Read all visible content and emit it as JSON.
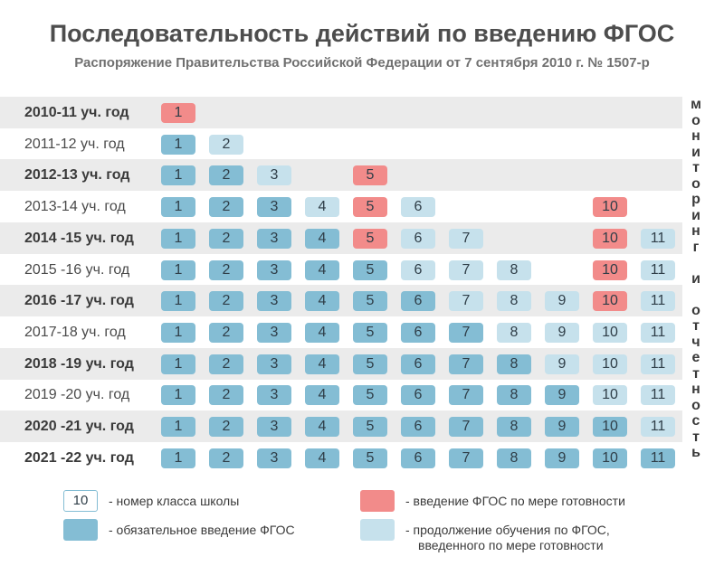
{
  "title": "Последовательность действий по введению ФГОС",
  "subtitle": "Распоряжение Правительства Российской Федерации от 7 сентября 2010 г. № 1507-р",
  "side_text": [
    "м",
    "о",
    "н",
    "и",
    "т",
    "о",
    "р",
    "и",
    "н",
    "г",
    "",
    "и",
    "",
    "о",
    "т",
    "ч",
    "е",
    "т",
    "н",
    "о",
    "с",
    "т",
    "ь"
  ],
  "colors": {
    "mandatory": "#84bdd4",
    "continued": "#c6e1ec",
    "introduction": "#f28b8a"
  },
  "rows": [
    {
      "label": "2010-11 уч. год",
      "bold": true,
      "cells": [
        {
          "n": "1",
          "s": "i"
        }
      ]
    },
    {
      "label": "2011-12 уч. год",
      "bold": false,
      "cells": [
        {
          "n": "1",
          "s": "m"
        },
        {
          "n": "2",
          "s": "c"
        }
      ]
    },
    {
      "label": "2012-13 уч. год",
      "bold": true,
      "cells": [
        {
          "n": "1",
          "s": "m"
        },
        {
          "n": "2",
          "s": "m"
        },
        {
          "n": "3",
          "s": "c"
        },
        {
          "n": "5",
          "s": "i"
        }
      ]
    },
    {
      "label": "2013-14 уч. год",
      "bold": false,
      "cells": [
        {
          "n": "1",
          "s": "m"
        },
        {
          "n": "2",
          "s": "m"
        },
        {
          "n": "3",
          "s": "m"
        },
        {
          "n": "4",
          "s": "c"
        },
        {
          "n": "5",
          "s": "i"
        },
        {
          "n": "6",
          "s": "c"
        },
        {
          "n": "10",
          "s": "i"
        }
      ]
    },
    {
      "label": "2014 -15 уч. год",
      "bold": true,
      "cells": [
        {
          "n": "1",
          "s": "m"
        },
        {
          "n": "2",
          "s": "m"
        },
        {
          "n": "3",
          "s": "m"
        },
        {
          "n": "4",
          "s": "m"
        },
        {
          "n": "5",
          "s": "i"
        },
        {
          "n": "6",
          "s": "c"
        },
        {
          "n": "7",
          "s": "c"
        },
        {
          "n": "10",
          "s": "i"
        },
        {
          "n": "11",
          "s": "c"
        }
      ]
    },
    {
      "label": "2015 -16 уч. год",
      "bold": false,
      "cells": [
        {
          "n": "1",
          "s": "m"
        },
        {
          "n": "2",
          "s": "m"
        },
        {
          "n": "3",
          "s": "m"
        },
        {
          "n": "4",
          "s": "m"
        },
        {
          "n": "5",
          "s": "m"
        },
        {
          "n": "6",
          "s": "c"
        },
        {
          "n": "7",
          "s": "c"
        },
        {
          "n": "8",
          "s": "c"
        },
        {
          "n": "10",
          "s": "i"
        },
        {
          "n": "11",
          "s": "c"
        }
      ]
    },
    {
      "label": "2016 -17 уч. год",
      "bold": true,
      "cells": [
        {
          "n": "1",
          "s": "m"
        },
        {
          "n": "2",
          "s": "m"
        },
        {
          "n": "3",
          "s": "m"
        },
        {
          "n": "4",
          "s": "m"
        },
        {
          "n": "5",
          "s": "m"
        },
        {
          "n": "6",
          "s": "m"
        },
        {
          "n": "7",
          "s": "c"
        },
        {
          "n": "8",
          "s": "c"
        },
        {
          "n": "9",
          "s": "c"
        },
        {
          "n": "10",
          "s": "i"
        },
        {
          "n": "11",
          "s": "c"
        }
      ]
    },
    {
      "label": "2017-18 уч. год",
      "bold": false,
      "cells": [
        {
          "n": "1",
          "s": "m"
        },
        {
          "n": "2",
          "s": "m"
        },
        {
          "n": "3",
          "s": "m"
        },
        {
          "n": "4",
          "s": "m"
        },
        {
          "n": "5",
          "s": "m"
        },
        {
          "n": "6",
          "s": "m"
        },
        {
          "n": "7",
          "s": "m"
        },
        {
          "n": "8",
          "s": "c"
        },
        {
          "n": "9",
          "s": "c"
        },
        {
          "n": "10",
          "s": "c"
        },
        {
          "n": "11",
          "s": "c"
        }
      ]
    },
    {
      "label": "2018 -19 уч. год",
      "bold": true,
      "cells": [
        {
          "n": "1",
          "s": "m"
        },
        {
          "n": "2",
          "s": "m"
        },
        {
          "n": "3",
          "s": "m"
        },
        {
          "n": "4",
          "s": "m"
        },
        {
          "n": "5",
          "s": "m"
        },
        {
          "n": "6",
          "s": "m"
        },
        {
          "n": "7",
          "s": "m"
        },
        {
          "n": "8",
          "s": "m"
        },
        {
          "n": "9",
          "s": "c"
        },
        {
          "n": "10",
          "s": "c"
        },
        {
          "n": "11",
          "s": "c"
        }
      ]
    },
    {
      "label": "2019 -20 уч. год",
      "bold": false,
      "cells": [
        {
          "n": "1",
          "s": "m"
        },
        {
          "n": "2",
          "s": "m"
        },
        {
          "n": "3",
          "s": "m"
        },
        {
          "n": "4",
          "s": "m"
        },
        {
          "n": "5",
          "s": "m"
        },
        {
          "n": "6",
          "s": "m"
        },
        {
          "n": "7",
          "s": "m"
        },
        {
          "n": "8",
          "s": "m"
        },
        {
          "n": "9",
          "s": "m"
        },
        {
          "n": "10",
          "s": "c"
        },
        {
          "n": "11",
          "s": "c"
        }
      ]
    },
    {
      "label": "2020 -21 уч. год",
      "bold": true,
      "cells": [
        {
          "n": "1",
          "s": "m"
        },
        {
          "n": "2",
          "s": "m"
        },
        {
          "n": "3",
          "s": "m"
        },
        {
          "n": "4",
          "s": "m"
        },
        {
          "n": "5",
          "s": "m"
        },
        {
          "n": "6",
          "s": "m"
        },
        {
          "n": "7",
          "s": "m"
        },
        {
          "n": "8",
          "s": "m"
        },
        {
          "n": "9",
          "s": "m"
        },
        {
          "n": "10",
          "s": "m"
        },
        {
          "n": "11",
          "s": "c"
        }
      ]
    },
    {
      "label": "2021 -22 уч. год",
      "bold": true,
      "cells": [
        {
          "n": "1",
          "s": "m"
        },
        {
          "n": "2",
          "s": "m"
        },
        {
          "n": "3",
          "s": "m"
        },
        {
          "n": "4",
          "s": "m"
        },
        {
          "n": "5",
          "s": "m"
        },
        {
          "n": "6",
          "s": "m"
        },
        {
          "n": "7",
          "s": "m"
        },
        {
          "n": "8",
          "s": "m"
        },
        {
          "n": "9",
          "s": "m"
        },
        {
          "n": "10",
          "s": "m"
        },
        {
          "n": "11",
          "s": "m"
        }
      ]
    }
  ],
  "legend": {
    "number_sample": "10",
    "number_text": "- номер класса школы",
    "mandatory_text": "- обязательное введение ФГОС",
    "introduction_text": "- введение ФГОС по мере готовности",
    "continued_text_1": "- продолжение обучения по ФГОС,",
    "continued_text_2": "введенного по мере готовности"
  }
}
